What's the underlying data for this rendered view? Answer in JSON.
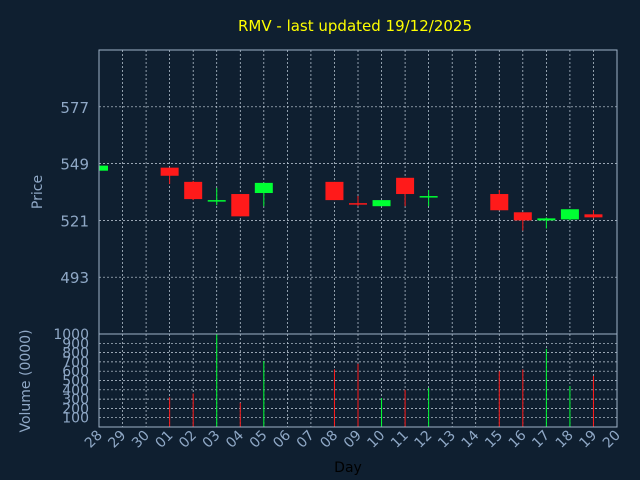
{
  "chart_data": {
    "type": "candlestick",
    "title": "RMV - last updated 19/12/2025",
    "xlabel": "Day",
    "price_axis": {
      "label": "Price",
      "ticks": [
        493,
        521,
        549,
        577
      ],
      "ylim": [
        465,
        605
      ]
    },
    "volume_axis": {
      "label": "Volume (0000)",
      "ticks": [
        100,
        200,
        300,
        400,
        500,
        600,
        700,
        800,
        900,
        1000
      ],
      "ylim": [
        0,
        1000
      ]
    },
    "categories": [
      "28",
      "29",
      "30",
      "01",
      "02",
      "03",
      "04",
      "05",
      "06",
      "07",
      "08",
      "09",
      "10",
      "11",
      "12",
      "13",
      "14",
      "15",
      "16",
      "17",
      "18",
      "19",
      "20"
    ],
    "candles": [
      {
        "day": "28",
        "open": 545.5,
        "close": 548.0,
        "high": 548.5,
        "low": 545.0,
        "volume": 0
      },
      {
        "day": "01",
        "open": 547.0,
        "close": 543.0,
        "high": 547.0,
        "low": 539.0,
        "volume": 320
      },
      {
        "day": "02",
        "open": 540.0,
        "close": 531.5,
        "high": 540.5,
        "low": 531.0,
        "volume": 360
      },
      {
        "day": "03",
        "open": 530.5,
        "close": 531.0,
        "high": 537.0,
        "low": 528.5,
        "volume": 1000
      },
      {
        "day": "04",
        "open": 534.0,
        "close": 523.0,
        "high": 534.0,
        "low": 523.0,
        "volume": 260
      },
      {
        "day": "05",
        "open": 534.5,
        "close": 539.5,
        "high": 539.5,
        "low": 528.0,
        "volume": 710
      },
      {
        "day": "08",
        "open": 540.0,
        "close": 531.0,
        "high": 540.0,
        "low": 531.0,
        "volume": 620
      },
      {
        "day": "09",
        "open": 529.5,
        "close": 529.0,
        "high": 533.0,
        "low": 528.0,
        "volume": 680
      },
      {
        "day": "10",
        "open": 528.0,
        "close": 531.0,
        "high": 531.0,
        "low": 528.0,
        "volume": 310
      },
      {
        "day": "11",
        "open": 542.0,
        "close": 534.0,
        "high": 542.0,
        "low": 528.0,
        "volume": 400
      },
      {
        "day": "12",
        "open": 532.5,
        "close": 533.0,
        "high": 536.0,
        "low": 528.0,
        "volume": 420
      },
      {
        "day": "15",
        "open": 534.0,
        "close": 526.0,
        "high": 536.0,
        "low": 526.0,
        "volume": 600
      },
      {
        "day": "16",
        "open": 525.0,
        "close": 521.0,
        "high": 525.0,
        "low": 516.0,
        "volume": 620
      },
      {
        "day": "17",
        "open": 521.0,
        "close": 522.0,
        "high": 522.5,
        "low": 517.0,
        "volume": 840
      },
      {
        "day": "18",
        "open": 521.5,
        "close": 526.5,
        "high": 526.5,
        "low": 521.0,
        "volume": 440
      },
      {
        "day": "19",
        "open": 524.0,
        "close": 522.5,
        "high": 526.0,
        "low": 522.0,
        "volume": 550
      }
    ],
    "colors": {
      "background": "#0f1f30",
      "frame": "#9fb3c8",
      "grid": "#c8d4e0",
      "title": "#ffff00",
      "axis_text": "#8fa8c6",
      "up": "#00ff33",
      "down": "#ff1a1a"
    },
    "grid": true
  }
}
